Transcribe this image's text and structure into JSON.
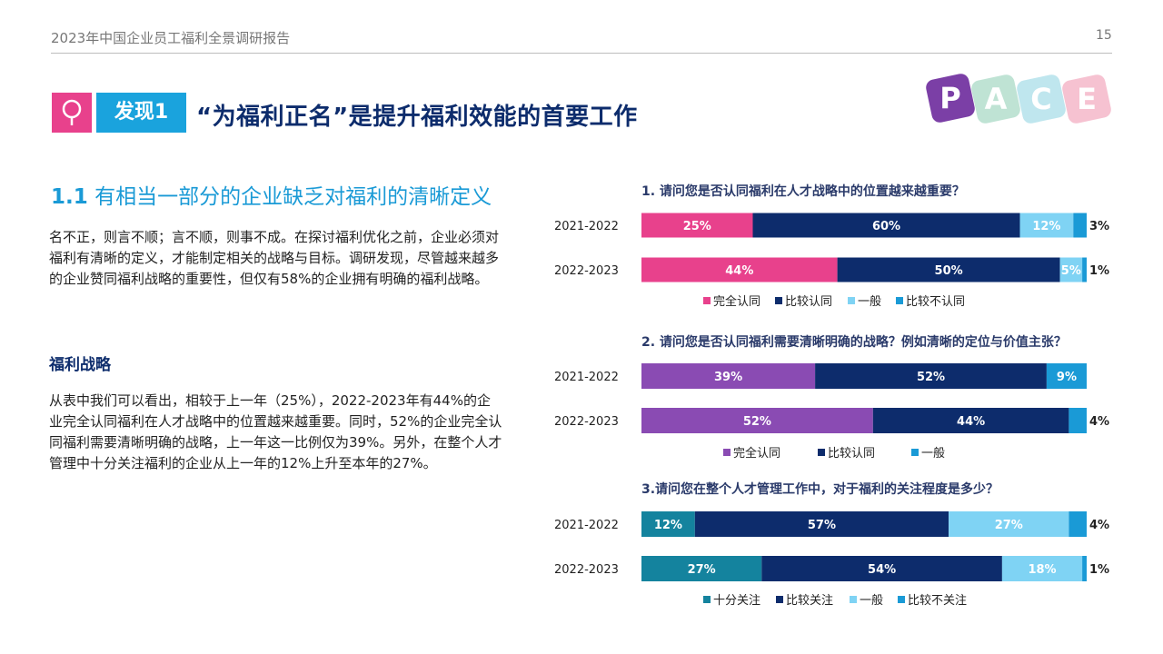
{
  "header": {
    "report_title": "2023年中国企业员工福利全景调研报告",
    "page_number": "15"
  },
  "finding": {
    "tag": "发现1",
    "title": "“为福利正名”是提升福利效能的首要工作"
  },
  "logo": {
    "letters": [
      "P",
      "A",
      "C",
      "E"
    ],
    "colors": [
      "#7b3fa6",
      "#bfe3d4",
      "#bfe6ee",
      "#f6c2d1"
    ]
  },
  "section": {
    "number": "1.1",
    "heading": "有相当一部分的企业缺乏对福利的清晰定义",
    "intro": "名不正，则言不顺；言不顺，则事不成。在探讨福利优化之前，企业必须对福利有清晰的定义，才能制定相关的战略与目标。调研发现，尽管越来越多的企业赞同福利战略的重要性，但仅有58%的企业拥有明确的福利战略。",
    "strategy_heading": "福利战略",
    "strategy_text": "从表中我们可以看出，相较于上一年（25%），2022-2023年有44%的企业完全认同福利在人才战略中的位置越来越重要。同时，52%的企业完全认同福利需要清晰明确的战略，上一年这一比例仅为39%。另外，在整个人才管理中十分关注福利的企业从上一年的12%上升至本年的27%。"
  },
  "chart_data": [
    {
      "type": "bar",
      "orientation": "horizontal",
      "stacked": true,
      "title": "1. 请问您是否认同福利在人才战略中的位置越来越重要？",
      "categories": [
        "2021-2022",
        "2022-2023"
      ],
      "series": [
        {
          "name": "完全认同",
          "color": "#e8418c",
          "values": [
            25,
            44
          ]
        },
        {
          "name": "比较认同",
          "color": "#0d2c6c",
          "values": [
            60,
            50
          ]
        },
        {
          "name": "一般",
          "color": "#7fd3f4",
          "values": [
            12,
            5
          ]
        },
        {
          "name": "比较不认同",
          "color": "#1a9ad6",
          "values": [
            3,
            1
          ]
        }
      ],
      "unit": "%",
      "legend_position": "bottom"
    },
    {
      "type": "bar",
      "orientation": "horizontal",
      "stacked": true,
      "title": "2. 请问您是否认同福利需要清晰明确的战略？例如清晰的定位与价值主张？",
      "categories": [
        "2021-2022",
        "2022-2023"
      ],
      "series": [
        {
          "name": "完全认同",
          "color": "#8a4bb3",
          "values": [
            39,
            52
          ]
        },
        {
          "name": "比较认同",
          "color": "#0d2c6c",
          "values": [
            52,
            44
          ]
        },
        {
          "name": "一般",
          "color": "#1a9ad6",
          "values": [
            9,
            4
          ]
        }
      ],
      "unit": "%",
      "legend_position": "bottom"
    },
    {
      "type": "bar",
      "orientation": "horizontal",
      "stacked": true,
      "title": "3.请问您在整个人才管理工作中，对于福利的关注程度是多少？",
      "categories": [
        "2021-2022",
        "2022-2023"
      ],
      "series": [
        {
          "name": "十分关注",
          "color": "#14839e",
          "values": [
            12,
            27
          ]
        },
        {
          "name": "比较关注",
          "color": "#0d2c6c",
          "values": [
            57,
            54
          ]
        },
        {
          "name": "一般",
          "color": "#7fd3f4",
          "values": [
            27,
            18
          ]
        },
        {
          "name": "比较不关注",
          "color": "#1a9ad6",
          "values": [
            4,
            1
          ]
        }
      ],
      "unit": "%",
      "legend_position": "bottom"
    }
  ]
}
